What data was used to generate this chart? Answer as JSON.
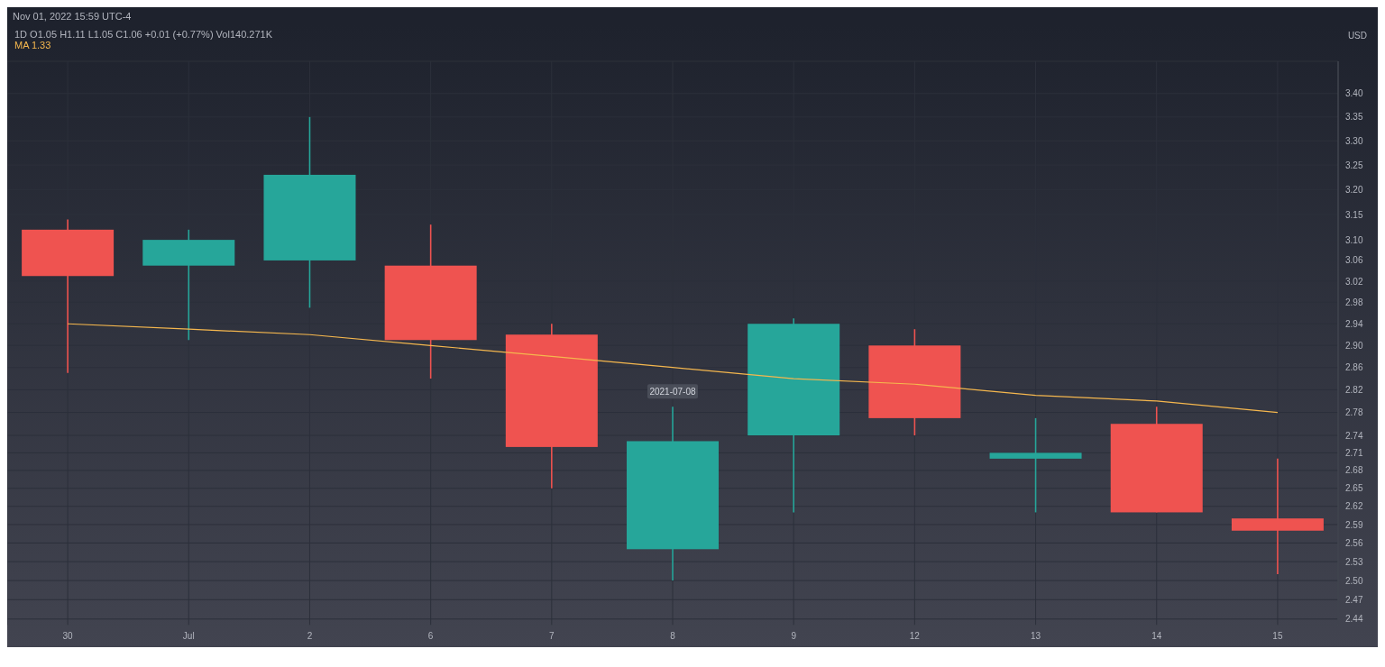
{
  "chart_data": {
    "type": "candlestick",
    "title": "1D O1.05 H1.11 L1.05 C1.06 +0.01 (+0.77%) Vol140.271K",
    "ylabel": "USD",
    "annotations": [
      "Nov 01, 2022 15:59 UTC-4",
      {
        "text": "2021-07-08",
        "x": "8",
        "y": 2.79
      }
    ],
    "categories": [
      "30",
      "Jul",
      "2",
      "6",
      "7",
      "8",
      "9",
      "12",
      "13",
      "14",
      "15"
    ],
    "ohlc": [
      [
        3.12,
        3.14,
        2.85,
        3.03
      ],
      [
        3.05,
        3.12,
        2.91,
        3.1
      ],
      [
        3.06,
        3.35,
        2.97,
        3.23
      ],
      [
        3.05,
        3.13,
        2.84,
        2.91
      ],
      [
        2.92,
        2.94,
        2.65,
        2.72
      ],
      [
        2.55,
        2.79,
        2.5,
        2.73
      ],
      [
        2.74,
        2.95,
        2.61,
        2.94
      ],
      [
        2.9,
        2.93,
        2.74,
        2.77
      ],
      [
        2.7,
        2.77,
        2.61,
        2.71
      ],
      [
        2.76,
        2.79,
        2.61,
        2.61
      ],
      [
        2.6,
        2.7,
        2.51,
        2.58
      ]
    ],
    "colors": [
      "#ef5350",
      "#26a69a",
      "#26a69a",
      "#ef5350",
      "#ef5350",
      "#26a69a",
      "#26a69a",
      "#ef5350",
      "#26a69a",
      "#ef5350",
      "#ef5350"
    ],
    "series": [
      {
        "type": "line",
        "name": "MA 1.33",
        "color": "#f5b74e",
        "values": [
          2.94,
          2.93,
          2.92,
          2.9,
          2.88,
          2.86,
          2.84,
          2.83,
          2.81,
          2.8,
          2.78
        ]
      }
    ],
    "ylim": [
      2.43,
      3.47
    ],
    "yticks": [
      2.44,
      2.47,
      {
        "value": 2.5,
        "label": "2.50"
      },
      2.53,
      2.56,
      2.59,
      2.62,
      2.65,
      2.68,
      2.71,
      2.74,
      2.78,
      2.82,
      2.86,
      {
        "value": 2.9,
        "label": "2.90"
      },
      2.94,
      2.98,
      3.02,
      3.06,
      {
        "value": 3.1,
        "label": "3.10"
      },
      3.15,
      {
        "value": 3.2,
        "label": "3.20"
      },
      3.25,
      {
        "value": 3.3,
        "label": "3.30"
      },
      3.35,
      {
        "value": 3.4,
        "label": "3.40"
      }
    ],
    "log": "y",
    "grid": true,
    "legend": "top left",
    "marker": "none"
  }
}
